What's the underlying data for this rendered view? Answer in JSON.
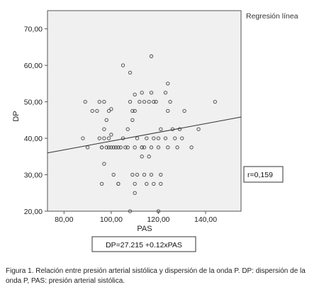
{
  "chart_data": {
    "type": "scatter",
    "xlabel": "PAS",
    "ylabel": "DP",
    "xlim": [
      73,
      155
    ],
    "ylim": [
      20,
      75
    ],
    "x_ticks": [
      "80,00",
      "100,00",
      "120,00",
      "140,00"
    ],
    "x_tick_values": [
      80,
      100,
      120,
      140
    ],
    "y_ticks": [
      "20,00",
      "30,00",
      "40,00",
      "50,00",
      "60,00",
      "70,00"
    ],
    "y_tick_values": [
      20,
      30,
      40,
      50,
      60,
      70
    ],
    "legend": "Regresión línea",
    "r_label": "r=0,159",
    "equation": "DP=27.215 +0.12xPAS",
    "regression": {
      "intercept": 27.215,
      "slope": 0.12
    },
    "marker": "open-circle",
    "grid": false,
    "background": "#f0f0f0",
    "points": [
      [
        89,
        50
      ],
      [
        92,
        47.5
      ],
      [
        95,
        50
      ],
      [
        97,
        50
      ],
      [
        99,
        47.5
      ],
      [
        94,
        47.5
      ],
      [
        100,
        48
      ],
      [
        88,
        40
      ],
      [
        90,
        37.5
      ],
      [
        95,
        40
      ],
      [
        96,
        37.5
      ],
      [
        98,
        37.5
      ],
      [
        99,
        40
      ],
      [
        100,
        41
      ],
      [
        97,
        42.5
      ],
      [
        98,
        45
      ],
      [
        101,
        37.5
      ],
      [
        102,
        37.5
      ],
      [
        103,
        37.5
      ],
      [
        96,
        37.5
      ],
      [
        97,
        40
      ],
      [
        99,
        37.5
      ],
      [
        100,
        37.5
      ],
      [
        97,
        33
      ],
      [
        96,
        27.5
      ],
      [
        101,
        30
      ],
      [
        103,
        27.5
      ],
      [
        103,
        27.5
      ],
      [
        106,
        37.5
      ],
      [
        107,
        37.5
      ],
      [
        105,
        40
      ],
      [
        107,
        42.5
      ],
      [
        109,
        45
      ],
      [
        109,
        47.5
      ],
      [
        110,
        47.5
      ],
      [
        110,
        52
      ],
      [
        108,
        50
      ],
      [
        112,
        50
      ],
      [
        114,
        50
      ],
      [
        113,
        52.5
      ],
      [
        116,
        50
      ],
      [
        117,
        52.5
      ],
      [
        118,
        50
      ],
      [
        119,
        50
      ],
      [
        123,
        52.5
      ],
      [
        124,
        55
      ],
      [
        125,
        50
      ],
      [
        124,
        47.5
      ],
      [
        105,
        60
      ],
      [
        108,
        58
      ],
      [
        117,
        62.5
      ],
      [
        109,
        30
      ],
      [
        110,
        27.5
      ],
      [
        110,
        25
      ],
      [
        111,
        30
      ],
      [
        114,
        30
      ],
      [
        115,
        27.5
      ],
      [
        117,
        30
      ],
      [
        118,
        27.5
      ],
      [
        121,
        30
      ],
      [
        121,
        27.5
      ],
      [
        110,
        37.5
      ],
      [
        111,
        40
      ],
      [
        113,
        37.5
      ],
      [
        113,
        35
      ],
      [
        114,
        37.5
      ],
      [
        115,
        40
      ],
      [
        116,
        35
      ],
      [
        117,
        37.5
      ],
      [
        118,
        40
      ],
      [
        120,
        37.5
      ],
      [
        120,
        40
      ],
      [
        121,
        42.5
      ],
      [
        123,
        40
      ],
      [
        124,
        37.5
      ],
      [
        126,
        42.5
      ],
      [
        127,
        40
      ],
      [
        128,
        37.5
      ],
      [
        129,
        42.5
      ],
      [
        130,
        40
      ],
      [
        131,
        47.5
      ],
      [
        134,
        37.5
      ],
      [
        137,
        42.5
      ],
      [
        144,
        50
      ],
      [
        120,
        20
      ],
      [
        108,
        20
      ],
      [
        113,
        37.5
      ],
      [
        104,
        37.5
      ]
    ]
  },
  "caption": {
    "label": "Figura 1",
    "text": ". Relación entre presión arterial sistólica y dispersión de la onda P. DP: dispersión de la onda P, PAS: presión arterial sistólica."
  }
}
